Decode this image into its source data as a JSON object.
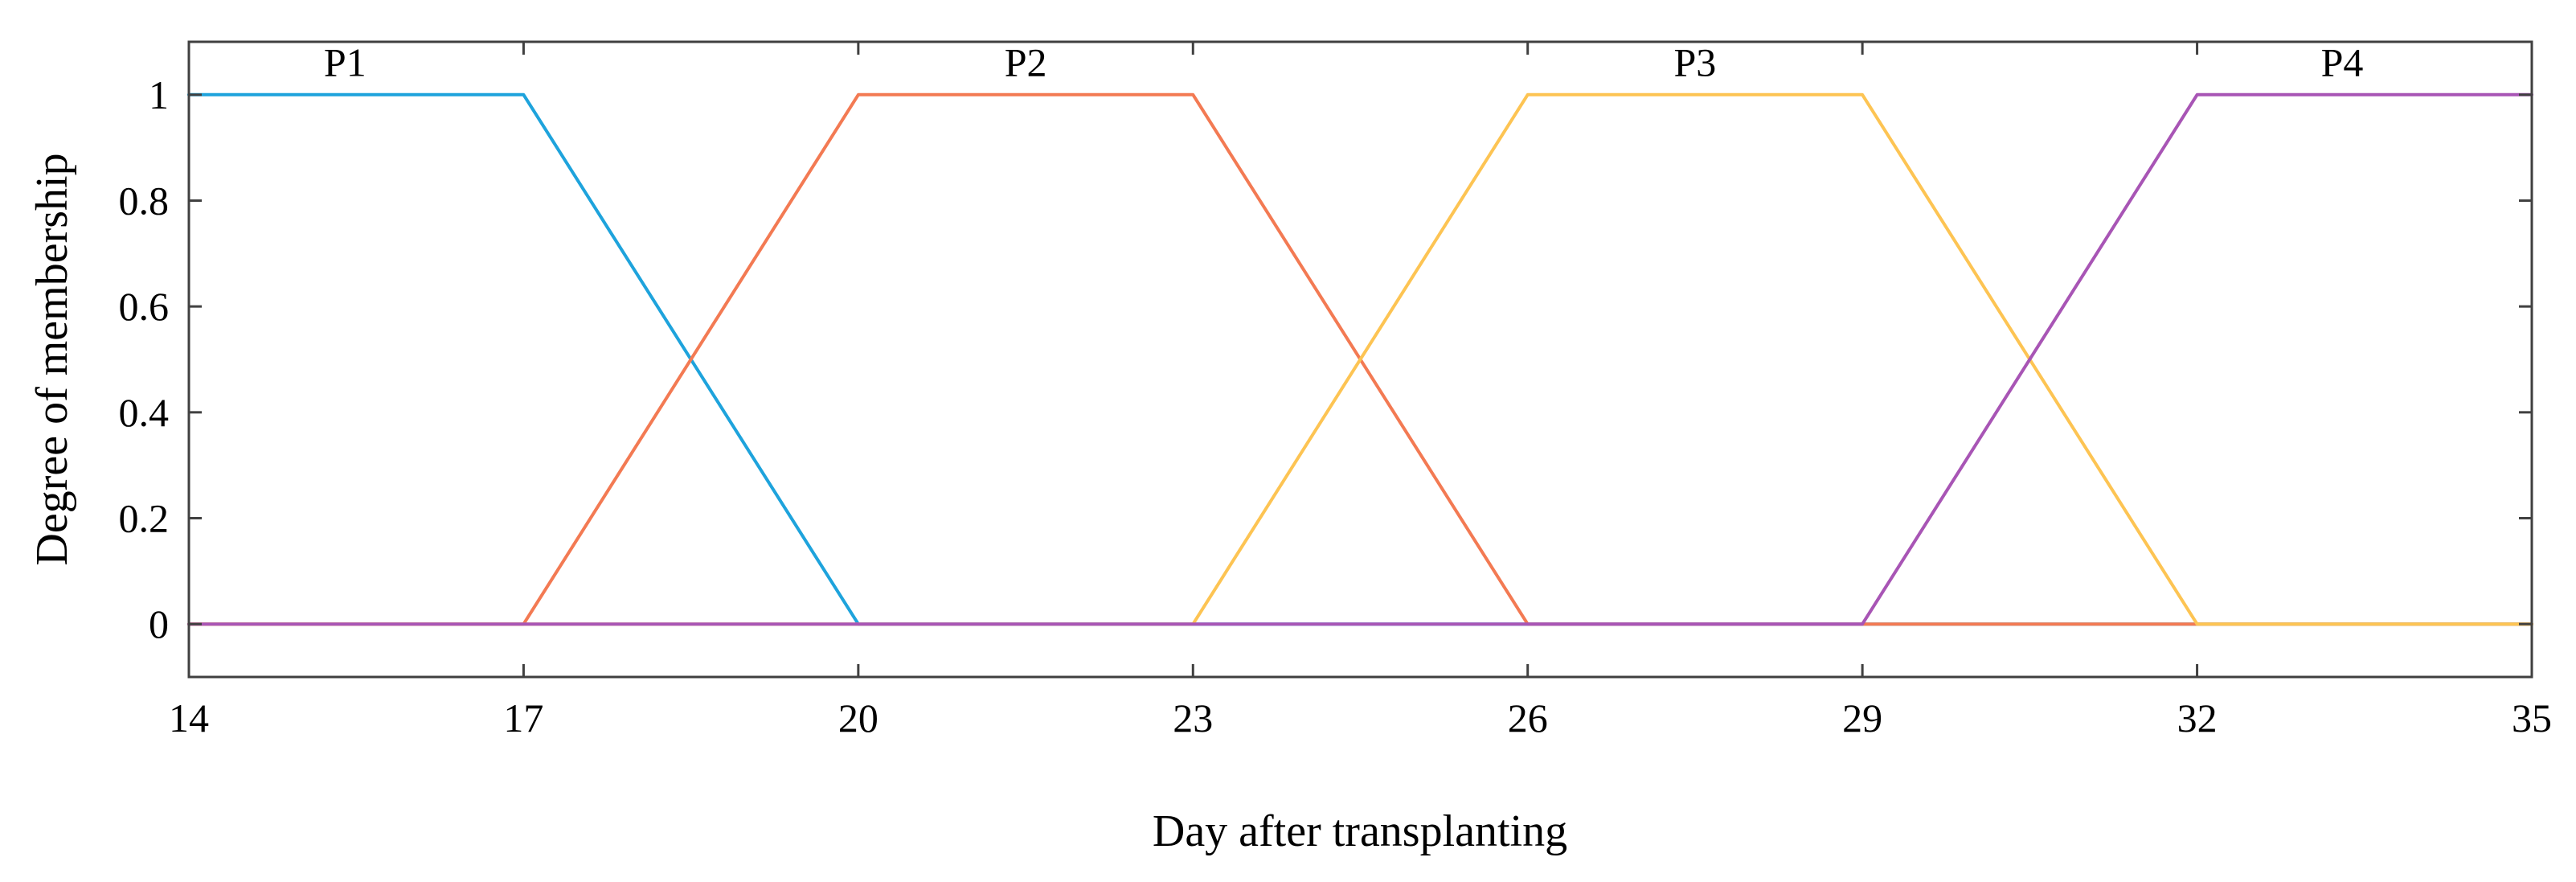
{
  "chart_data": {
    "type": "line",
    "title": "",
    "xlabel": "Day after transplanting",
    "ylabel": "Degree of membership",
    "xlim": [
      14,
      35
    ],
    "ylim": [
      -0.1,
      1.1
    ],
    "xticks": [
      14,
      17,
      20,
      23,
      26,
      29,
      32,
      35
    ],
    "xtick_labels": [
      "14",
      "17",
      "20",
      "23",
      "26",
      "29",
      "32",
      "35"
    ],
    "yticks": [
      0,
      0.2,
      0.4,
      0.6,
      0.8,
      1
    ],
    "ytick_labels": [
      "0",
      "0.2",
      "0.4",
      "0.6",
      "0.8",
      "1"
    ],
    "grid": false,
    "series": [
      {
        "name": "P1",
        "color": "#1ea3dc",
        "x": [
          14,
          17,
          20,
          35
        ],
        "y": [
          1,
          1,
          0,
          0
        ],
        "label_x": 15.4,
        "label_y": 1.02
      },
      {
        "name": "P2",
        "color": "#f37a53",
        "x": [
          14,
          17,
          20,
          23,
          26,
          35
        ],
        "y": [
          0,
          0,
          1,
          1,
          0,
          0
        ],
        "label_x": 21.5,
        "label_y": 1.02
      },
      {
        "name": "P3",
        "color": "#fdc453",
        "x": [
          14,
          23,
          26,
          29,
          32,
          35
        ],
        "y": [
          0,
          0,
          1,
          1,
          0,
          0
        ],
        "label_x": 27.5,
        "label_y": 1.02
      },
      {
        "name": "P4",
        "color": "#a855b5",
        "x": [
          14,
          29,
          32,
          35
        ],
        "y": [
          0,
          0,
          1,
          1
        ],
        "label_x": 33.3,
        "label_y": 1.02
      }
    ]
  }
}
